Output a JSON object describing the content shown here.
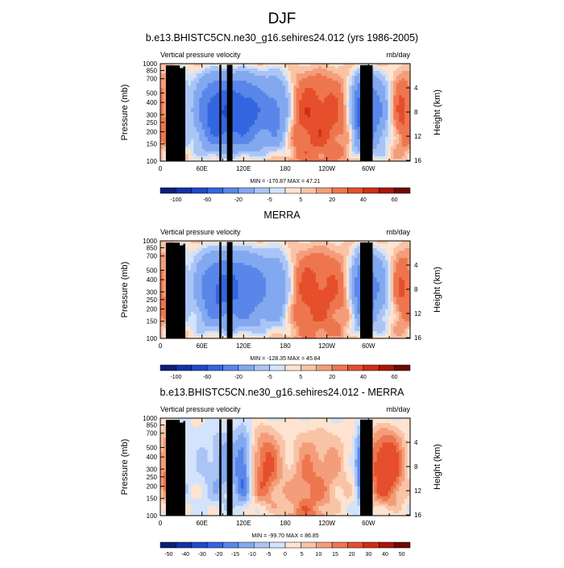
{
  "page": {
    "title": "DJF"
  },
  "chart_data": [
    {
      "type": "heatmap",
      "title": "b.e13.BHISTC5CN.ne30_g16.sehires24.012 (yrs 1986-2005)",
      "left_label": "Vertical pressure velocity",
      "right_label": "mb/day",
      "ylabel": "Pressure (mb)",
      "y2label": "Height (km)",
      "x_ticks": [
        "0",
        "60E",
        "120E",
        "180",
        "120W",
        "60W"
      ],
      "y_ticks": [
        "100",
        "150",
        "200",
        "250",
        "300",
        "400",
        "500",
        "700",
        "850",
        "1000"
      ],
      "y2_ticks": [
        "16",
        "12",
        "8",
        "4"
      ],
      "stats": "MIN = -170.87  MAX =  47.21",
      "colorbar_labels": [
        "-100",
        "-60",
        "-20",
        "-5",
        "5",
        "20",
        "40",
        "60"
      ],
      "colorbar_colors": [
        "#0a1f7a",
        "#1232a8",
        "#2149c8",
        "#3366e0",
        "#5a86ea",
        "#82a8f0",
        "#aac5f5",
        "#d2e3fb",
        "#fde3d0",
        "#f9c3a6",
        "#f49d7a",
        "#ee764f",
        "#e54f2b",
        "#cf2e16",
        "#a8170a",
        "#6e0a05"
      ],
      "ylim": [
        1000,
        100
      ],
      "xlim": [
        0,
        360
      ]
    },
    {
      "type": "heatmap",
      "title": "MERRA",
      "left_label": "Vertical pressure velocity",
      "right_label": "mb/day",
      "ylabel": "Pressure (mb)",
      "y2label": "Height (km)",
      "x_ticks": [
        "0",
        "60E",
        "120E",
        "180",
        "120W",
        "60W"
      ],
      "y_ticks": [
        "100",
        "150",
        "200",
        "250",
        "300",
        "400",
        "500",
        "700",
        "850",
        "1000"
      ],
      "y2_ticks": [
        "16",
        "12",
        "8",
        "4"
      ],
      "stats": "MIN = -128.35  MAX =  45.84",
      "colorbar_labels": [
        "-100",
        "-60",
        "-20",
        "-5",
        "5",
        "20",
        "40",
        "60"
      ],
      "colorbar_colors": [
        "#0a1f7a",
        "#1232a8",
        "#2149c8",
        "#3366e0",
        "#5a86ea",
        "#82a8f0",
        "#aac5f5",
        "#d2e3fb",
        "#fde3d0",
        "#f9c3a6",
        "#f49d7a",
        "#ee764f",
        "#e54f2b",
        "#cf2e16",
        "#a8170a",
        "#6e0a05"
      ],
      "ylim": [
        1000,
        100
      ],
      "xlim": [
        0,
        360
      ]
    },
    {
      "type": "heatmap",
      "title": "b.e13.BHISTC5CN.ne30_g16.sehires24.012 - MERRA",
      "left_label": "Vertical pressure velocity",
      "right_label": "mb/day",
      "ylabel": "Pressure (mb)",
      "y2label": "Height (km)",
      "x_ticks": [
        "0",
        "60E",
        "120E",
        "180",
        "120W",
        "60W"
      ],
      "y_ticks": [
        "100",
        "150",
        "200",
        "250",
        "300",
        "400",
        "500",
        "700",
        "850",
        "1000"
      ],
      "y2_ticks": [
        "16",
        "12",
        "8",
        "4"
      ],
      "stats": "MIN = -99.70  MAX =  86.85",
      "colorbar_labels": [
        "-50",
        "-40",
        "-30",
        "-20",
        "-15",
        "-10",
        "-5",
        "0",
        "5",
        "10",
        "15",
        "20",
        "30",
        "40",
        "50"
      ],
      "colorbar_colors": [
        "#0a1f7a",
        "#1232a8",
        "#2149c8",
        "#3366e0",
        "#5a86ea",
        "#82a8f0",
        "#aac5f5",
        "#d2e3fb",
        "#fde3d0",
        "#f9c3a6",
        "#f49d7a",
        "#ee764f",
        "#e54f2b",
        "#cf2e16",
        "#a8170a",
        "#6e0a05"
      ],
      "ylim": [
        1000,
        100
      ],
      "xlim": [
        0,
        360
      ]
    }
  ]
}
